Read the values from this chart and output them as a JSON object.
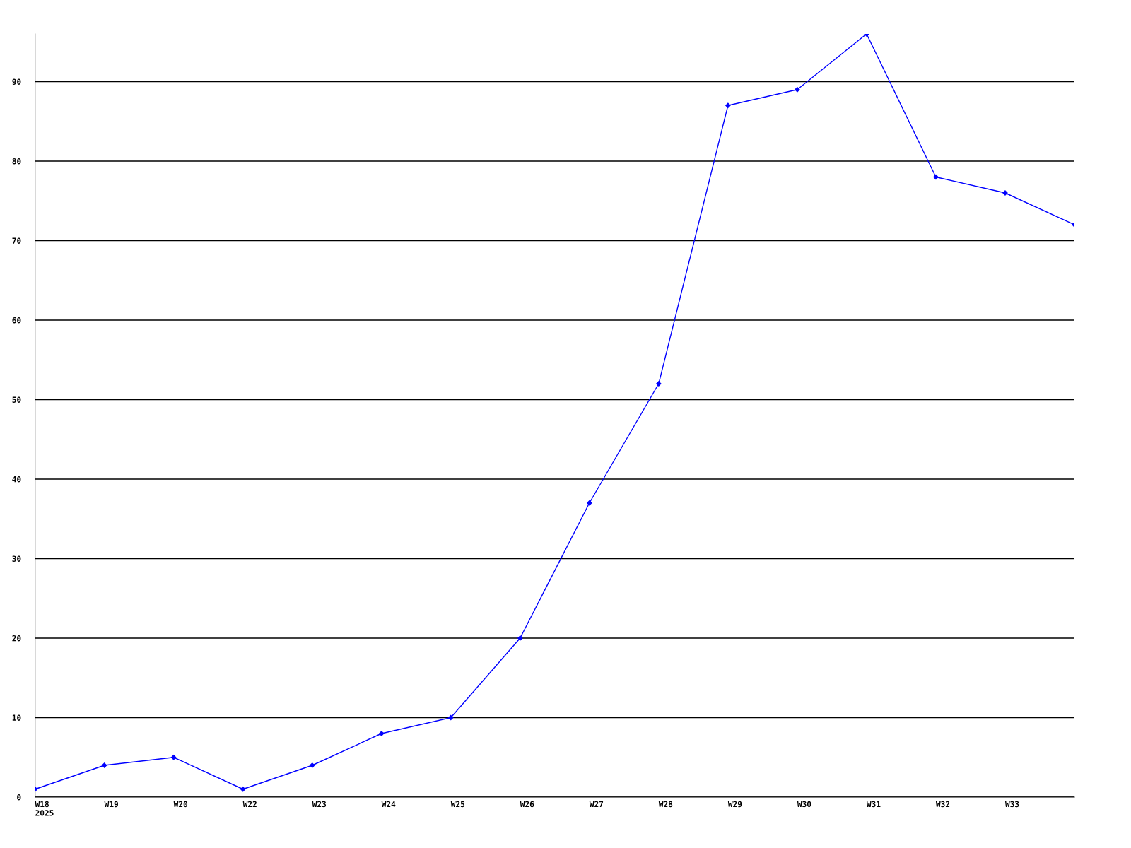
{
  "chart_data": {
    "type": "line",
    "categories": [
      "W18\n2025",
      "W19",
      "W20",
      "W22",
      "W23",
      "W24",
      "W25",
      "W26",
      "W27",
      "W28",
      "W29",
      "W30",
      "W31",
      "W32",
      "W33",
      null
    ],
    "series": [
      {
        "color": "#0000ff",
        "values": [
          1,
          4,
          5,
          1,
          4,
          8,
          10,
          20,
          37,
          52,
          87,
          89,
          96,
          78,
          76,
          72
        ]
      }
    ],
    "ylim": [
      0,
      96
    ],
    "yticks": [
      0,
      10,
      20,
      30,
      40,
      50,
      60,
      70,
      80,
      90
    ],
    "grid": "y",
    "marker": "diamond",
    "line_style": "solid"
  }
}
